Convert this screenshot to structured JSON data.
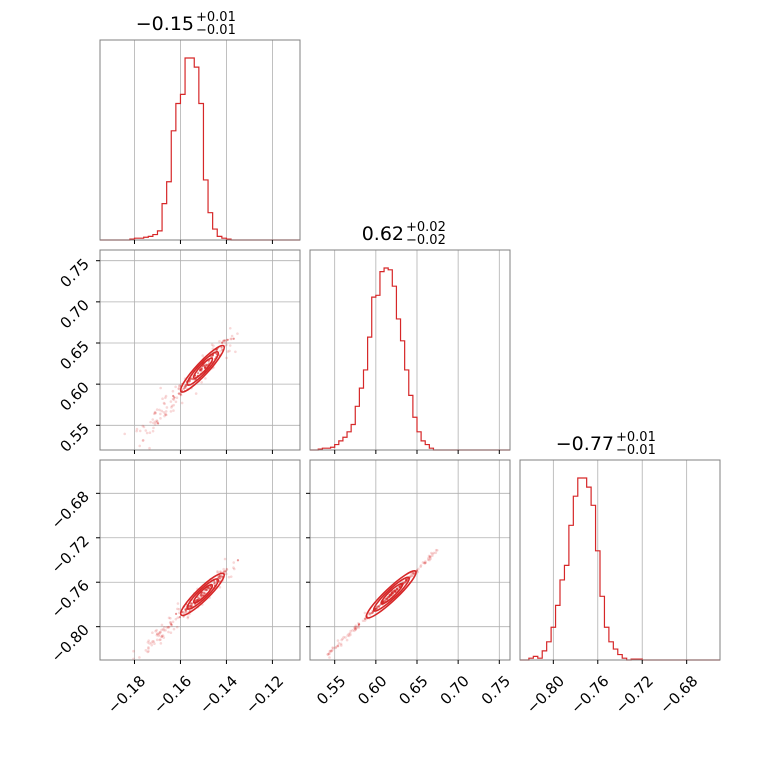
{
  "chart_data": {
    "type": "corner",
    "accent_color": "#d62728",
    "grid": true,
    "axes_frame_color": "#808080",
    "grid_color": "#b0b0b0",
    "parameters": [
      {
        "id": "p1",
        "median": -0.15,
        "err_plus": 0.01,
        "err_minus": 0.01,
        "range": [
          -0.195,
          -0.108
        ],
        "ticks": [
          -0.18,
          -0.16,
          -0.14,
          -0.12
        ]
      },
      {
        "id": "p2",
        "median": 0.62,
        "err_plus": 0.02,
        "err_minus": 0.02,
        "range": [
          0.52,
          0.763
        ],
        "ticks": [
          0.55,
          0.6,
          0.65,
          0.7,
          0.75
        ]
      },
      {
        "id": "p3",
        "median": -0.77,
        "err_plus": 0.01,
        "err_minus": 0.01,
        "range": [
          -0.83,
          -0.65
        ],
        "ticks": [
          -0.8,
          -0.76,
          -0.72,
          -0.68
        ]
      }
    ],
    "titles": [
      {
        "main": "−0.15",
        "sup": "+0.01",
        "sub": "−0.01"
      },
      {
        "main": "0.62",
        "sup": "+0.02",
        "sub": "−0.02"
      },
      {
        "main": "−0.77",
        "sup": "+0.01",
        "sub": "−0.01"
      }
    ],
    "tick_labels": {
      "p1": [
        "−0.18",
        "−0.16",
        "−0.14",
        "−0.12"
      ],
      "p2": [
        "0.55",
        "0.60",
        "0.65",
        "0.70",
        "0.75"
      ],
      "p3": [
        "−0.80",
        "−0.76",
        "−0.72",
        "−0.68"
      ]
    },
    "histograms": [
      {
        "param": "p1",
        "edges": [
          -0.19,
          -0.188,
          -0.186,
          -0.184,
          -0.182,
          -0.18,
          -0.178,
          -0.176,
          -0.174,
          -0.172,
          -0.17,
          -0.168,
          -0.166,
          -0.164,
          -0.162,
          -0.16,
          -0.158,
          -0.156,
          -0.154,
          -0.152,
          -0.15,
          -0.148,
          -0.146,
          -0.144,
          -0.142,
          -0.14,
          -0.138,
          -0.136,
          -0.134,
          -0.132,
          -0.13
        ],
        "counts": [
          0,
          0,
          0,
          0,
          0.5,
          1,
          1,
          1.5,
          2,
          3,
          5,
          20,
          32,
          60,
          75,
          80,
          100,
          100,
          95,
          75,
          33,
          15,
          6,
          2,
          1,
          0.5,
          0,
          0,
          0,
          0
        ]
      },
      {
        "param": "p2",
        "edges": [
          0.52,
          0.53,
          0.535,
          0.54,
          0.545,
          0.55,
          0.555,
          0.56,
          0.565,
          0.57,
          0.575,
          0.58,
          0.585,
          0.59,
          0.595,
          0.6,
          0.605,
          0.61,
          0.615,
          0.62,
          0.625,
          0.63,
          0.635,
          0.64,
          0.645,
          0.65,
          0.655,
          0.66,
          0.665,
          0.67,
          0.68
        ],
        "counts": [
          0,
          0.5,
          1,
          1,
          1.5,
          3,
          5,
          7,
          10,
          14,
          24,
          34,
          44,
          62,
          84,
          85,
          98,
          100,
          99,
          90,
          72,
          60,
          44,
          30,
          18,
          10,
          5,
          3,
          1,
          0
        ]
      },
      {
        "param": "p3",
        "edges": [
          -0.83,
          -0.822,
          -0.818,
          -0.814,
          -0.81,
          -0.806,
          -0.802,
          -0.798,
          -0.794,
          -0.79,
          -0.786,
          -0.782,
          -0.778,
          -0.774,
          -0.77,
          -0.766,
          -0.762,
          -0.758,
          -0.754,
          -0.75,
          -0.746,
          -0.742,
          -0.738,
          -0.734,
          -0.73,
          -0.72,
          -0.65
        ],
        "counts": [
          0,
          1,
          2,
          1,
          5,
          10,
          18,
          30,
          44,
          52,
          74,
          90,
          100,
          100,
          95,
          85,
          60,
          35,
          18,
          10,
          6,
          3,
          1,
          0,
          0.5,
          0
        ]
      }
    ],
    "pairs": [
      {
        "x": "p1",
        "y": "p2",
        "slope": 3.0,
        "x_range": [
          -0.18,
          -0.138
        ],
        "width": 0.004
      },
      {
        "x": "p1",
        "y": "p3",
        "slope": 2.0,
        "x_range": [
          -0.18,
          -0.138
        ],
        "width": 0.003
      },
      {
        "x": "p2",
        "y": "p3",
        "slope": 0.7,
        "x_range": [
          0.54,
          0.675
        ],
        "width": 0.0025
      }
    ]
  }
}
